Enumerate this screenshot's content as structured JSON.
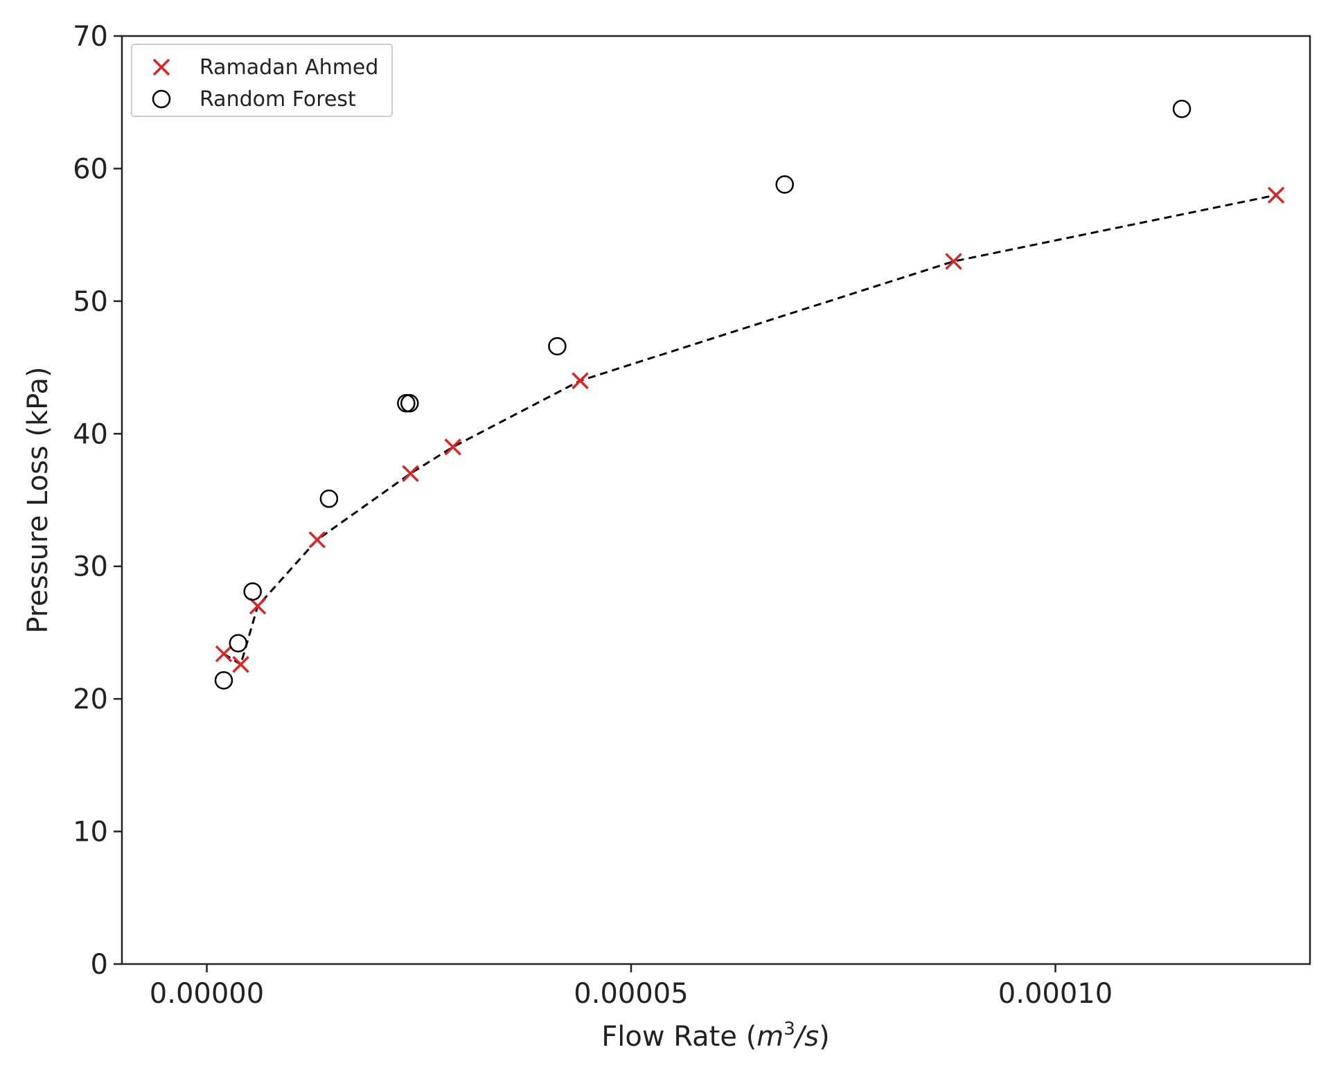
{
  "chart_data": {
    "type": "scatter",
    "title": "",
    "xlabel": "Flow Rate (",
    "xlabel_math_base": "m",
    "xlabel_math_sup": "3",
    "xlabel_math_tail": "/s",
    "xlabel_close": ")",
    "ylabel": "Pressure Loss (kPa)",
    "xlim": [
      -1e-05,
      0.00013
    ],
    "ylim": [
      0,
      70
    ],
    "x_ticks": [
      0.0,
      5e-05,
      0.0001
    ],
    "x_tick_labels": [
      "0.00000",
      "0.00005",
      "0.00010"
    ],
    "y_ticks": [
      0,
      10,
      20,
      30,
      40,
      50,
      60,
      70
    ],
    "y_tick_labels": [
      "0",
      "10",
      "20",
      "30",
      "40",
      "50",
      "60",
      "70"
    ],
    "grid": false,
    "legend_position": "top-left",
    "series": [
      {
        "name": "Ramadan Ahmed",
        "marker": "x",
        "color": "#d62728",
        "line": "dashed",
        "line_color": "#000000",
        "x": [
          2e-06,
          4e-06,
          6e-06,
          1.3e-05,
          2.4e-05,
          2.9e-05,
          4.4e-05,
          8.8e-05,
          0.000126
        ],
        "y": [
          23.4,
          22.6,
          27.0,
          32.0,
          37.0,
          39.0,
          44.0,
          53.0,
          58.0
        ]
      },
      {
        "name": "Random Forest",
        "marker": "o",
        "color": "#000000",
        "x": [
          2e-06,
          3.7e-06,
          5.4e-06,
          1.44e-05,
          2.35e-05,
          2.39e-05,
          4.13e-05,
          6.81e-05,
          0.0001149
        ],
        "y": [
          21.4,
          24.2,
          28.1,
          35.1,
          42.3,
          42.3,
          46.6,
          58.8,
          64.5
        ]
      }
    ]
  }
}
